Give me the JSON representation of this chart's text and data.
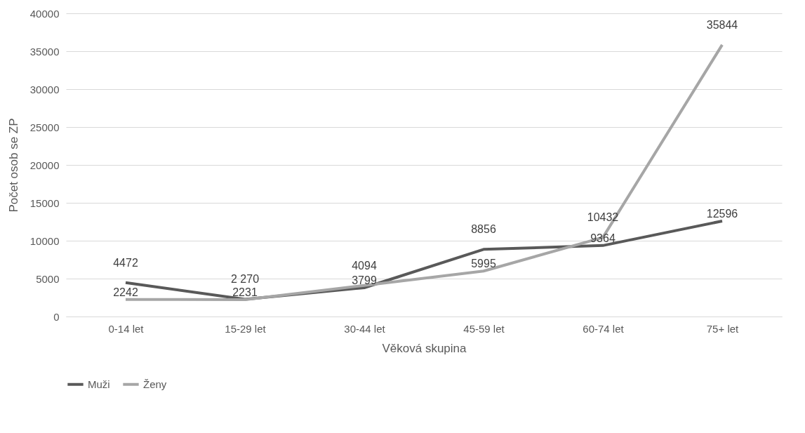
{
  "chart_data": {
    "type": "line",
    "xlabel": "Věková skupina",
    "ylabel": "Počet osob se ZP",
    "categories": [
      "0-14 let",
      "15-29 let",
      "30-44 let",
      "45-59 let",
      "60-74 let",
      "75+ let"
    ],
    "series": [
      {
        "name": "Muži",
        "color": "#595959",
        "values": [
          4472,
          2270,
          3799,
          8856,
          9364,
          12596
        ],
        "value_labels": [
          "4472",
          "2 270",
          "3799",
          "8856",
          "9364",
          "12596"
        ]
      },
      {
        "name": "Ženy",
        "color": "#a6a6a6",
        "values": [
          2242,
          2231,
          4094,
          5995,
          10432,
          35844
        ],
        "value_labels": [
          "2242",
          "2231",
          "4094",
          "5995",
          "10432",
          "35844"
        ]
      }
    ],
    "ylim": [
      0,
      40000
    ],
    "yticks": [
      0,
      5000,
      10000,
      15000,
      20000,
      25000,
      30000,
      35000,
      40000
    ],
    "grid": "y",
    "legend": "bottom",
    "marker": "none",
    "line_style": "solid"
  }
}
